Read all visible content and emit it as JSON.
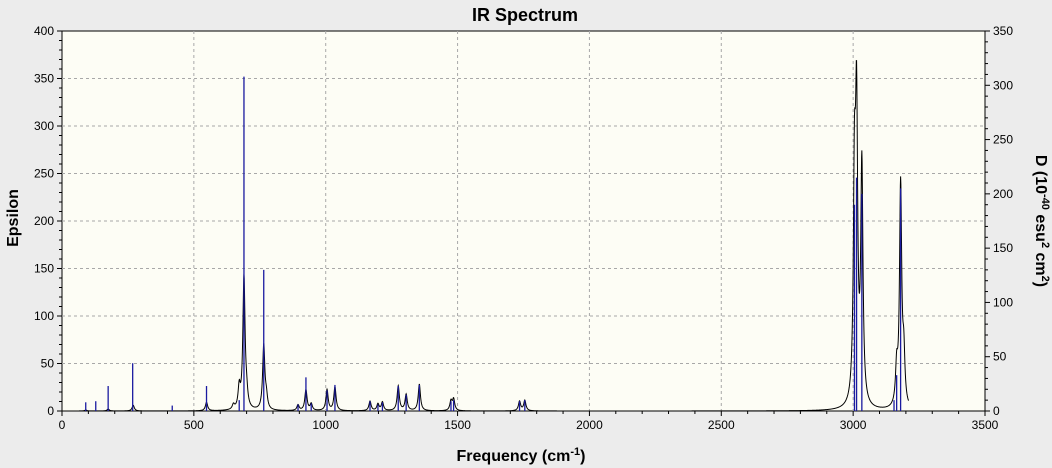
{
  "chart_data": {
    "type": "line",
    "title": "IR Spectrum",
    "xlabel_main": "Frequency (cm",
    "xlabel_sup": "-1",
    "xlabel_end": ")",
    "ylabel": "Epsilon",
    "y2label_parts": [
      {
        "t": "D (10",
        "sup": false
      },
      {
        "t": "-40",
        "sup": true
      },
      {
        "t": " esu",
        "sup": false
      },
      {
        "t": "2",
        "sup": true
      },
      {
        "t": " cm",
        "sup": false
      },
      {
        "t": "2",
        "sup": true
      },
      {
        "t": ")",
        "sup": false
      }
    ],
    "xlim": [
      0,
      3500
    ],
    "ylim": [
      0,
      400
    ],
    "y2lim": [
      0,
      350
    ],
    "xticks": [
      0,
      500,
      1000,
      1500,
      2000,
      2500,
      3000,
      3500
    ],
    "yticks": [
      0,
      50,
      100,
      150,
      200,
      250,
      300,
      350,
      400
    ],
    "y2ticks": [
      0,
      50,
      100,
      150,
      200,
      250,
      300,
      350
    ],
    "grid": true,
    "plot_background": "#fdfdf5",
    "figure_background": "#ececec",
    "curve_color": "#000000",
    "stick_color": "#1a1aa0",
    "spectrum_range": [
      60,
      3210
    ],
    "spectrum_peaks": [
      {
        "freq": 90,
        "eps": 1
      },
      {
        "freq": 175,
        "eps": 2
      },
      {
        "freq": 270,
        "eps": 6
      },
      {
        "freq": 548,
        "eps": 9
      },
      {
        "freq": 650,
        "eps": 5
      },
      {
        "freq": 672,
        "eps": 22
      },
      {
        "freq": 690,
        "eps": 140
      },
      {
        "freq": 700,
        "eps": 12
      },
      {
        "freq": 765,
        "eps": 68
      },
      {
        "freq": 775,
        "eps": 12
      },
      {
        "freq": 895,
        "eps": 6
      },
      {
        "freq": 925,
        "eps": 22
      },
      {
        "freq": 945,
        "eps": 7
      },
      {
        "freq": 1005,
        "eps": 22
      },
      {
        "freq": 1035,
        "eps": 25
      },
      {
        "freq": 1168,
        "eps": 10
      },
      {
        "freq": 1198,
        "eps": 7
      },
      {
        "freq": 1215,
        "eps": 9
      },
      {
        "freq": 1275,
        "eps": 26
      },
      {
        "freq": 1305,
        "eps": 17
      },
      {
        "freq": 1355,
        "eps": 28
      },
      {
        "freq": 1475,
        "eps": 10
      },
      {
        "freq": 1485,
        "eps": 12
      },
      {
        "freq": 1735,
        "eps": 10
      },
      {
        "freq": 1755,
        "eps": 11
      },
      {
        "freq": 3005,
        "eps": 220
      },
      {
        "freq": 3013,
        "eps": 292
      },
      {
        "freq": 3033,
        "eps": 250
      },
      {
        "freq": 3165,
        "eps": 38
      },
      {
        "freq": 3180,
        "eps": 235
      },
      {
        "freq": 3192,
        "eps": 50
      }
    ],
    "sticks_D": [
      {
        "freq": 90,
        "d": 8
      },
      {
        "freq": 128,
        "d": 9
      },
      {
        "freq": 175,
        "d": 23
      },
      {
        "freq": 268,
        "d": 44
      },
      {
        "freq": 418,
        "d": 5
      },
      {
        "freq": 548,
        "d": 23
      },
      {
        "freq": 672,
        "d": 10
      },
      {
        "freq": 690,
        "d": 308
      },
      {
        "freq": 765,
        "d": 130
      },
      {
        "freq": 895,
        "d": 6
      },
      {
        "freq": 925,
        "d": 31
      },
      {
        "freq": 945,
        "d": 7
      },
      {
        "freq": 1005,
        "d": 19
      },
      {
        "freq": 1035,
        "d": 24
      },
      {
        "freq": 1168,
        "d": 9
      },
      {
        "freq": 1198,
        "d": 6
      },
      {
        "freq": 1215,
        "d": 8
      },
      {
        "freq": 1275,
        "d": 23
      },
      {
        "freq": 1305,
        "d": 15
      },
      {
        "freq": 1355,
        "d": 24
      },
      {
        "freq": 1475,
        "d": 9
      },
      {
        "freq": 1485,
        "d": 10
      },
      {
        "freq": 1735,
        "d": 9
      },
      {
        "freq": 1755,
        "d": 10
      },
      {
        "freq": 3005,
        "d": 190
      },
      {
        "freq": 3013,
        "d": 215
      },
      {
        "freq": 3033,
        "d": 200
      },
      {
        "freq": 3155,
        "d": 10
      },
      {
        "freq": 3165,
        "d": 33
      },
      {
        "freq": 3180,
        "d": 205
      }
    ]
  }
}
